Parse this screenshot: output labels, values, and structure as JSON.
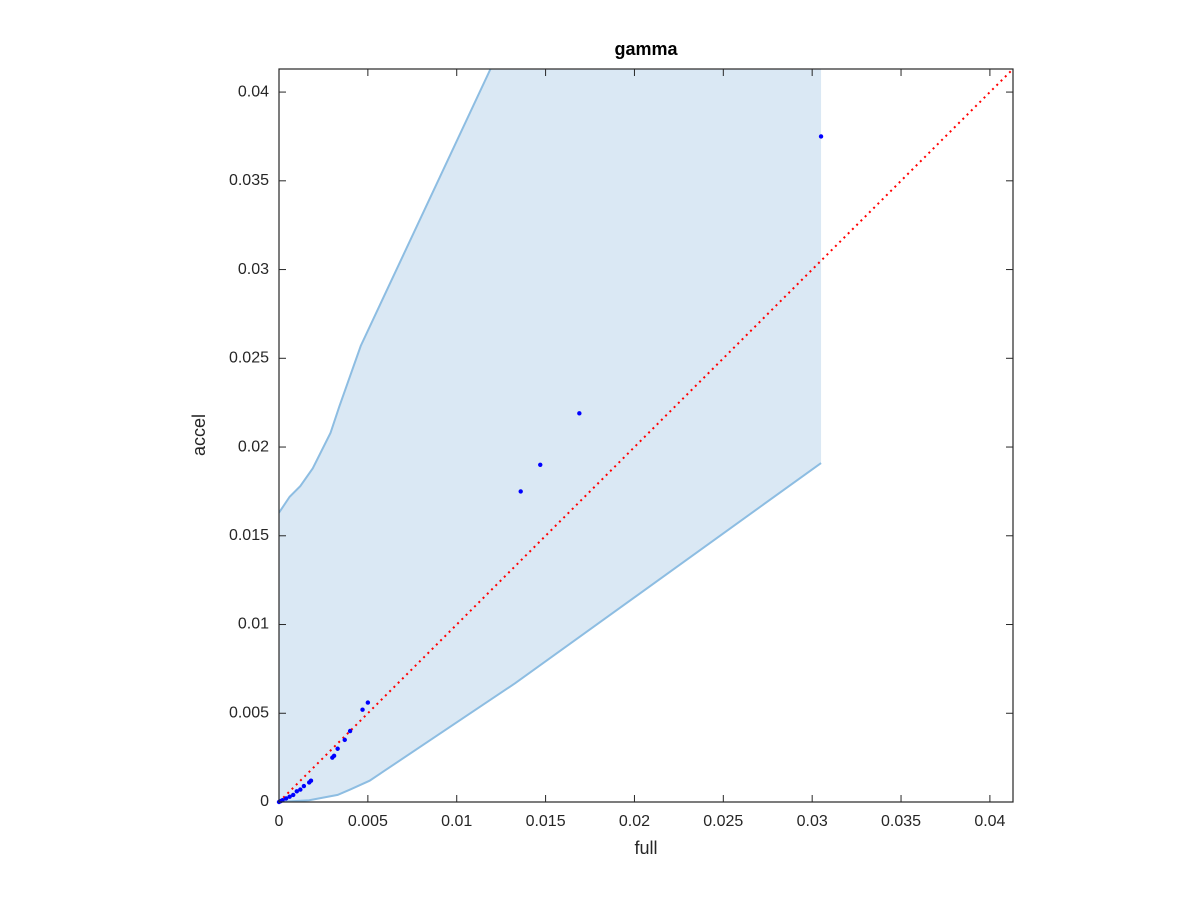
{
  "chart_data": {
    "type": "scatter",
    "title": "gamma",
    "x_label": "full",
    "y_label": "accel",
    "xlim": [
      0,
      0.0413
    ],
    "ylim": [
      0,
      0.0413
    ],
    "xticks": [
      0,
      0.005,
      0.01,
      0.015,
      0.02,
      0.025,
      0.03,
      0.035,
      0.04
    ],
    "yticks": [
      0,
      0.005,
      0.01,
      0.015,
      0.02,
      0.025,
      0.03,
      0.035,
      0.04
    ],
    "box": true,
    "band": {
      "color": "#dae8f4",
      "edge_color": "#8dbde2",
      "upper": {
        "x": [
          0,
          0.0006,
          0.0012,
          0.0019,
          0.0029,
          0.0034,
          0.0046,
          0.0119
        ],
        "y": [
          0.0163,
          0.0172,
          0.0178,
          0.0188,
          0.0208,
          0.0223,
          0.0257,
          0.0413
        ]
      },
      "lower": {
        "x": [
          0,
          0.0017,
          0.0033,
          0.004,
          0.0051,
          0.0133,
          0.0305
        ],
        "y": [
          0,
          0.0001,
          0.0004,
          0.0007,
          0.0012,
          0.0067,
          0.0191
        ]
      }
    },
    "reference": {
      "x": [
        0,
        0.0413
      ],
      "y": [
        0,
        0.0413
      ],
      "color": "#ff0000"
    },
    "points": {
      "color": "#0000ff",
      "x": [
        0.0305,
        0.0169,
        0.0147,
        0.0136,
        0.005,
        0.0047,
        0.004,
        0.0037,
        0.0033,
        0.0031,
        0.003,
        0.0018,
        0.0017,
        0.0014,
        0.0012,
        0.001,
        0.0008,
        0.0006,
        0.0004,
        0.0002,
        0.0001,
        0
      ],
      "y": [
        0.0375,
        0.0219,
        0.019,
        0.0175,
        0.0056,
        0.0052,
        0.004,
        0.0035,
        0.003,
        0.0026,
        0.0025,
        0.0012,
        0.0011,
        0.0009,
        0.0007,
        0.0006,
        0.0004,
        0.0003,
        0.0002,
        0.0001,
        5e-05,
        0
      ]
    }
  }
}
